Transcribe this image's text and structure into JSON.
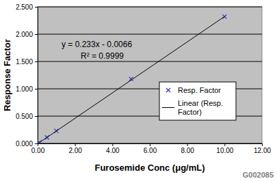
{
  "chart_data": {
    "type": "scatter",
    "x_label": "Furosemide Conc (μg/mL)",
    "y_label": "Response Factor",
    "annotations": [
      "y = 0.233x - 0.0066",
      "R² = 0.9999",
      "G002085"
    ],
    "series": [
      {
        "name": "Resp. Factor",
        "type": "scatter",
        "marker": "x",
        "color": "#3333cc",
        "x": [
          0.1,
          0.5,
          1,
          5,
          10
        ],
        "values": [
          0.02,
          0.11,
          0.23,
          1.18,
          2.32
        ]
      },
      {
        "name": "Linear (Resp. Factor)",
        "type": "line",
        "line_style": "solid",
        "color": "#000000",
        "x": [
          0.1,
          10
        ],
        "values": [
          0.017,
          2.323
        ]
      }
    ],
    "xlim": [
      0,
      12
    ],
    "xticks": [
      {
        "value": 0,
        "label": "0.00"
      },
      {
        "value": 2,
        "label": "2.00"
      },
      {
        "value": 4,
        "label": "4.00"
      },
      {
        "value": 6,
        "label": "6.00"
      },
      {
        "value": 8,
        "label": "8.00"
      },
      {
        "value": 10,
        "label": "10.00"
      },
      {
        "value": 12,
        "label": "12.00"
      }
    ],
    "ylim": [
      0,
      2.5
    ],
    "yticks": [
      {
        "value": 0,
        "label": "0.000"
      },
      {
        "value": 0.5,
        "label": "0.500"
      },
      {
        "value": 1,
        "label": "1.000"
      },
      {
        "value": 1.5,
        "label": "1.500"
      },
      {
        "value": 2,
        "label": "2.000"
      },
      {
        "value": 2.5,
        "label": "2.500"
      }
    ],
    "grid": "y",
    "legend": "right"
  }
}
